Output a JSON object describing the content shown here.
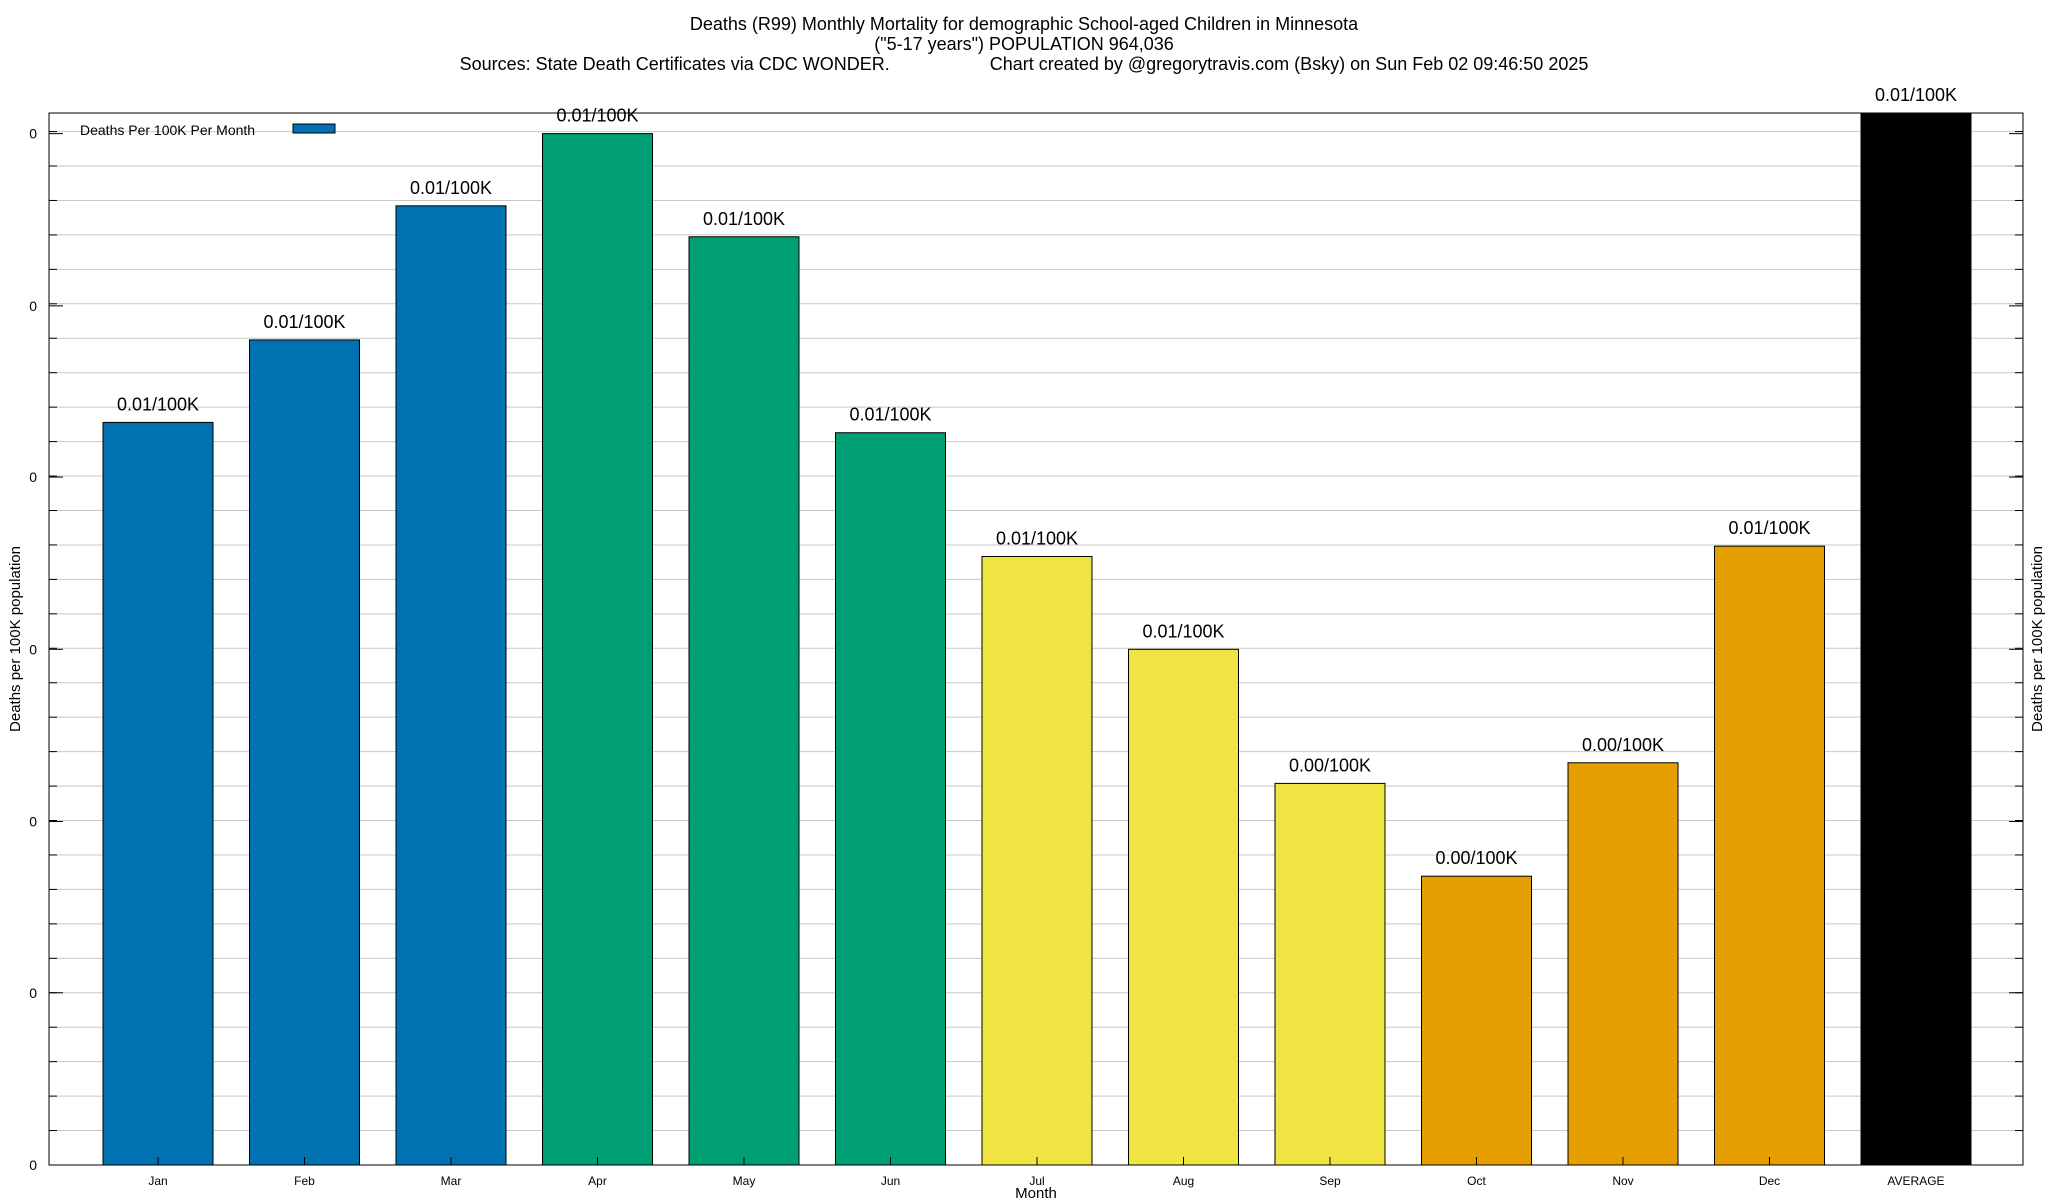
{
  "chart_data": {
    "type": "bar",
    "title": "Deaths (R99) Monthly Mortality for demographic School-aged Children in Minnesota",
    "subtitle": "(\"5-17 years\") POPULATION 964,036",
    "sources": "Sources: State Death Certificates via CDC WONDER.",
    "credit": "Chart created by @gregorytravis.com (Bsky) on Sun Feb 02 09:46:50 2025",
    "xlabel": "Month",
    "ylabel": "Deaths per 100K population",
    "y2label": "Deaths per 100K population",
    "categories": [
      "Jan",
      "Feb",
      "Mar",
      "Apr",
      "May",
      "Jun",
      "Jul",
      "Aug",
      "Sep",
      "Oct",
      "Nov",
      "Dec",
      "AVERAGE"
    ],
    "values": [
      0.0072,
      0.008,
      0.0093,
      0.01,
      0.009,
      0.0071,
      0.0059,
      0.005,
      0.0037,
      0.0028,
      0.0039,
      0.006,
      0.0102
    ],
    "data_labels": [
      "0.01/100K",
      "0.01/100K",
      "0.01/100K",
      "0.01/100K",
      "0.01/100K",
      "0.01/100K",
      "0.01/100K",
      "0.01/100K",
      "0.00/100K",
      "0.00/100K",
      "0.00/100K",
      "0.01/100K",
      "0.01/100K"
    ],
    "bar_colors": [
      "#0072b2",
      "#0072b2",
      "#0072b2",
      "#009e73",
      "#009e73",
      "#009e73",
      "#f0e442",
      "#f0e442",
      "#f0e442",
      "#e69f00",
      "#e69f00",
      "#e69f00",
      "#000000"
    ],
    "ylim": [
      0,
      0.0102
    ],
    "ytick_values": [
      0,
      0.00167,
      0.00333,
      0.005,
      0.00667,
      0.00833,
      0.01
    ],
    "ytick_labels": [
      "0",
      "0",
      "0",
      "0",
      "0",
      "0",
      "0"
    ],
    "legend": {
      "label": "Deaths Per 100K Per Month",
      "color": "#0072b2",
      "position": "top-left"
    },
    "grid": true
  }
}
